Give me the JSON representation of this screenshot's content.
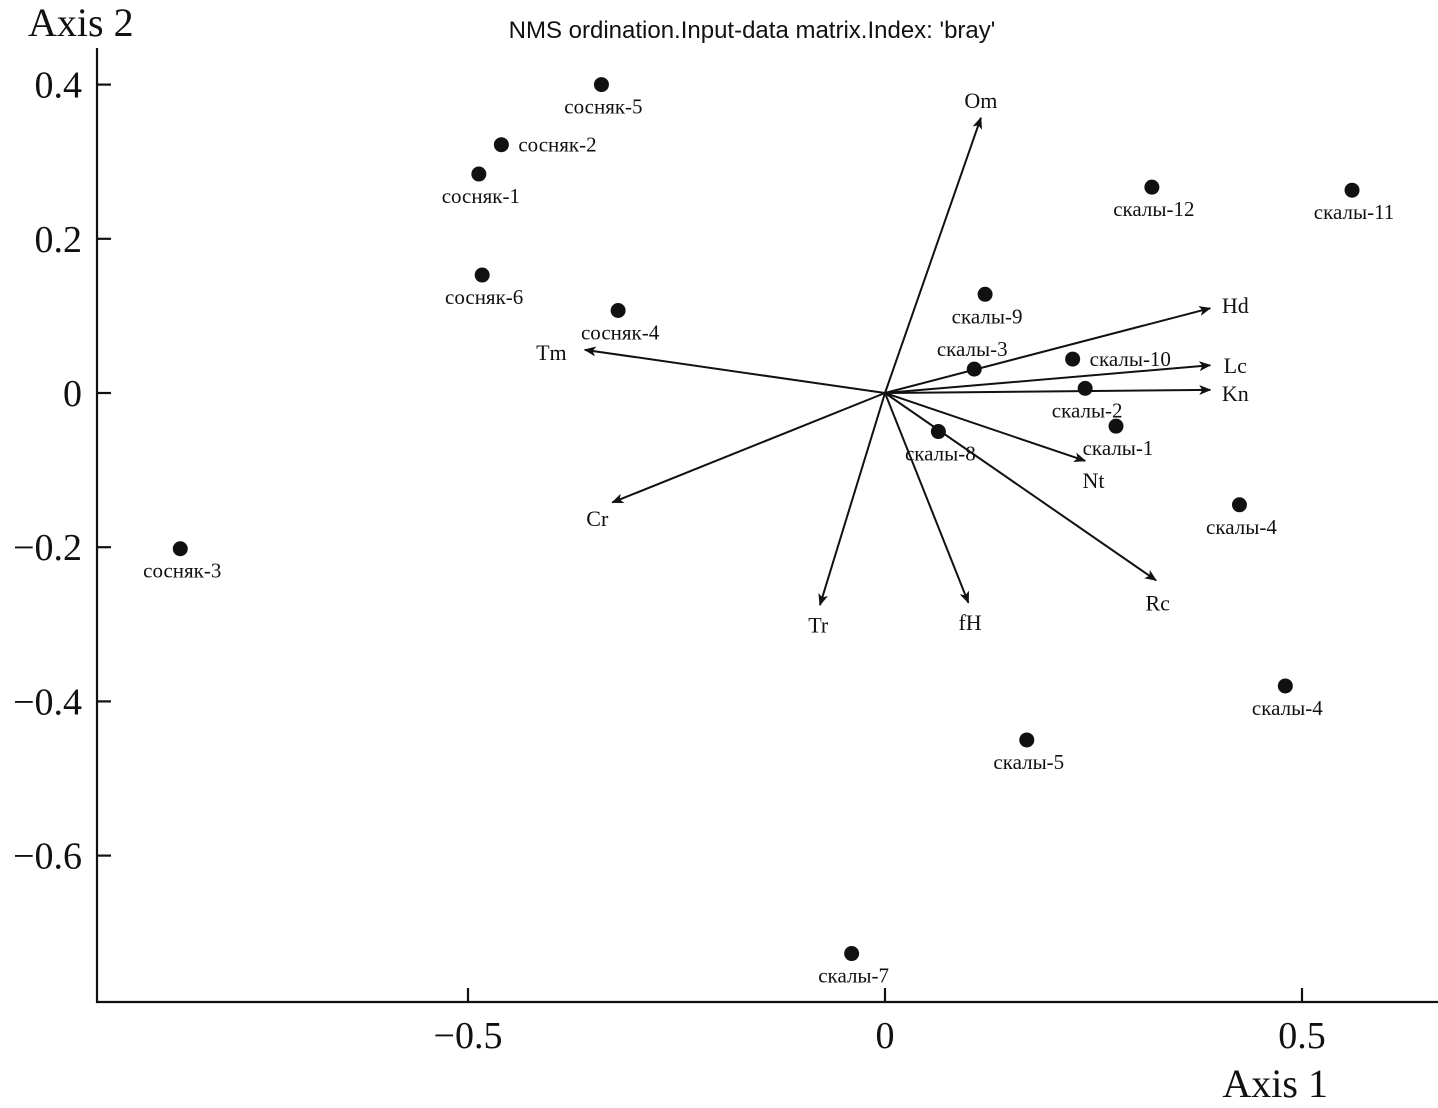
{
  "chart_data": {
    "type": "scatter",
    "title": "NMS ordination.Input-data matrix.Index: 'bray'",
    "xlabel": "Axis 1",
    "ylabel": "Axis 2",
    "xlim": [
      -0.95,
      0.65
    ],
    "ylim": [
      -0.79,
      0.45
    ],
    "xticks": [
      {
        "v": -0.5,
        "label": "−0.5"
      },
      {
        "v": 0,
        "label": "0"
      },
      {
        "v": 0.5,
        "label": "0.5"
      }
    ],
    "yticks": [
      {
        "v": 0.4,
        "label": "0.4"
      },
      {
        "v": 0.2,
        "label": "0.2"
      },
      {
        "v": 0,
        "label": "0"
      },
      {
        "v": -0.2,
        "label": "−0.2"
      },
      {
        "v": -0.4,
        "label": "−0.4"
      },
      {
        "v": -0.6,
        "label": "−0.6"
      }
    ],
    "points": [
      {
        "label": "сосняк-5",
        "x": -0.34,
        "y": 0.4,
        "pos": "below"
      },
      {
        "label": "сосняк-2",
        "x": -0.46,
        "y": 0.322,
        "pos": "right"
      },
      {
        "label": "сосняк-1",
        "x": -0.487,
        "y": 0.284,
        "pos": "below"
      },
      {
        "label": "сосняк-6",
        "x": -0.483,
        "y": 0.153,
        "pos": "below"
      },
      {
        "label": "сосняк-4",
        "x": -0.32,
        "y": 0.107,
        "pos": "below"
      },
      {
        "label": "сосняк-3",
        "x": -0.845,
        "y": -0.202,
        "pos": "below"
      },
      {
        "label": "скалы-12",
        "x": 0.32,
        "y": 0.267,
        "pos": "below"
      },
      {
        "label": "скалы-11",
        "x": 0.56,
        "y": 0.263,
        "pos": "below"
      },
      {
        "label": "скалы-9",
        "x": 0.12,
        "y": 0.128,
        "pos": "below"
      },
      {
        "label": "скалы-3",
        "x": 0.107,
        "y": 0.031,
        "pos": "above"
      },
      {
        "label": "скалы-10",
        "x": 0.225,
        "y": 0.044,
        "pos": "right"
      },
      {
        "label": "скалы-2",
        "x": 0.24,
        "y": 0.006,
        "pos": "below"
      },
      {
        "label": "скалы-1",
        "x": 0.277,
        "y": -0.043,
        "pos": "below"
      },
      {
        "label": "скалы-8",
        "x": 0.064,
        "y": -0.05,
        "pos": "below"
      },
      {
        "label": "скалы-4",
        "x": 0.425,
        "y": -0.145,
        "pos": "below"
      },
      {
        "label": "скалы-4",
        "x": 0.48,
        "y": -0.38,
        "pos": "below"
      },
      {
        "label": "скалы-5",
        "x": 0.17,
        "y": -0.45,
        "pos": "below"
      },
      {
        "label": "скалы-7",
        "x": -0.04,
        "y": -0.727,
        "pos": "below"
      }
    ],
    "vectors": [
      {
        "label": "Om",
        "x": 0.115,
        "y": 0.357,
        "lx": 0.115,
        "ly": 0.38
      },
      {
        "label": "Hd",
        "x": 0.39,
        "y": 0.11,
        "lx": 0.42,
        "ly": 0.114
      },
      {
        "label": "Lc",
        "x": 0.39,
        "y": 0.036,
        "lx": 0.42,
        "ly": 0.036
      },
      {
        "label": "Kn",
        "x": 0.39,
        "y": 0.004,
        "lx": 0.42,
        "ly": 0.0
      },
      {
        "label": "Nt",
        "x": 0.24,
        "y": -0.088,
        "lx": 0.25,
        "ly": -0.113
      },
      {
        "label": "Rc",
        "x": 0.325,
        "y": -0.243,
        "lx": 0.327,
        "ly": -0.272
      },
      {
        "label": "fH",
        "x": 0.1,
        "y": -0.272,
        "lx": 0.102,
        "ly": -0.297
      },
      {
        "label": "Tr",
        "x": -0.078,
        "y": -0.275,
        "lx": -0.08,
        "ly": -0.3
      },
      {
        "label": "Cr",
        "x": -0.327,
        "y": -0.142,
        "lx": -0.345,
        "ly": -0.162
      },
      {
        "label": "Tm",
        "x": -0.36,
        "y": 0.056,
        "lx": -0.4,
        "ly": 0.053
      }
    ]
  }
}
